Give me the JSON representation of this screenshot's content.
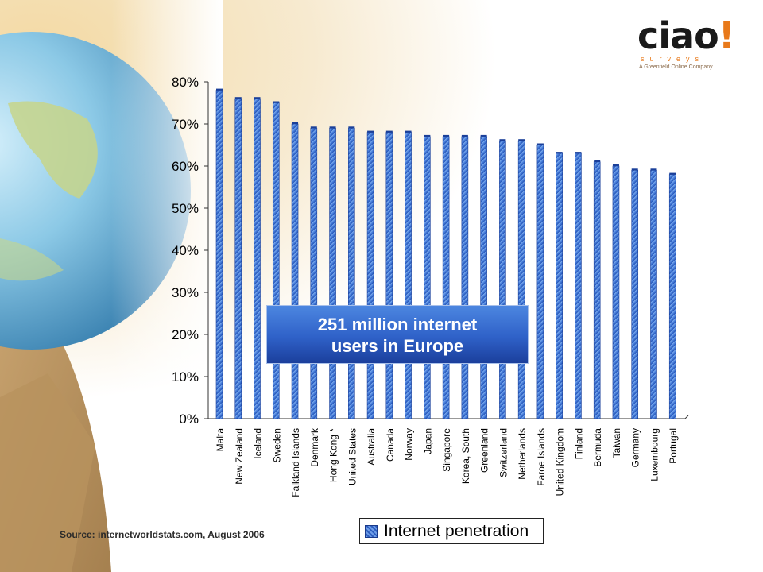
{
  "logo": {
    "brand": "ciao",
    "bang": "!",
    "sub": "surveys",
    "tagline": "A Greenfield Online Company"
  },
  "callout": {
    "line1": "251 million internet",
    "line2": "users in Europe"
  },
  "legend": {
    "label": "Internet penetration"
  },
  "source": "Source: internetworldstats.com,  August 2006",
  "colors": {
    "bar_light": "#7fb0f0",
    "bar_dark": "#1f4fb3",
    "bar_mid": "#3d74d6"
  },
  "chart_data": {
    "type": "bar",
    "title": "",
    "xlabel": "",
    "ylabel": "",
    "ylim": [
      0,
      80
    ],
    "yticks": [
      "0%",
      "10%",
      "20%",
      "30%",
      "40%",
      "50%",
      "60%",
      "70%",
      "80%"
    ],
    "categories": [
      "Malta",
      "New Zealand",
      "Iceland",
      "Sweden",
      "Falkland Islands",
      "Denmark",
      "Hong Kong *",
      "United States",
      "Australia",
      "Canada",
      "Norway",
      "Japan",
      "Singapore",
      "Korea, South",
      "Greenland",
      "Switzerland",
      "Netherlands",
      "Faroe Islands",
      "United Kingdom",
      "Finland",
      "Bermuda",
      "Taiwan",
      "Germany",
      "Luxembourg",
      "Portugal"
    ],
    "series": [
      {
        "name": "Internet penetration",
        "values": [
          78,
          76,
          76,
          75,
          70,
          69,
          69,
          69,
          68,
          68,
          68,
          67,
          67,
          67,
          67,
          66,
          66,
          65,
          63,
          63,
          61,
          60,
          59,
          59,
          58
        ]
      }
    ],
    "grid": false,
    "legend_position": "bottom"
  }
}
